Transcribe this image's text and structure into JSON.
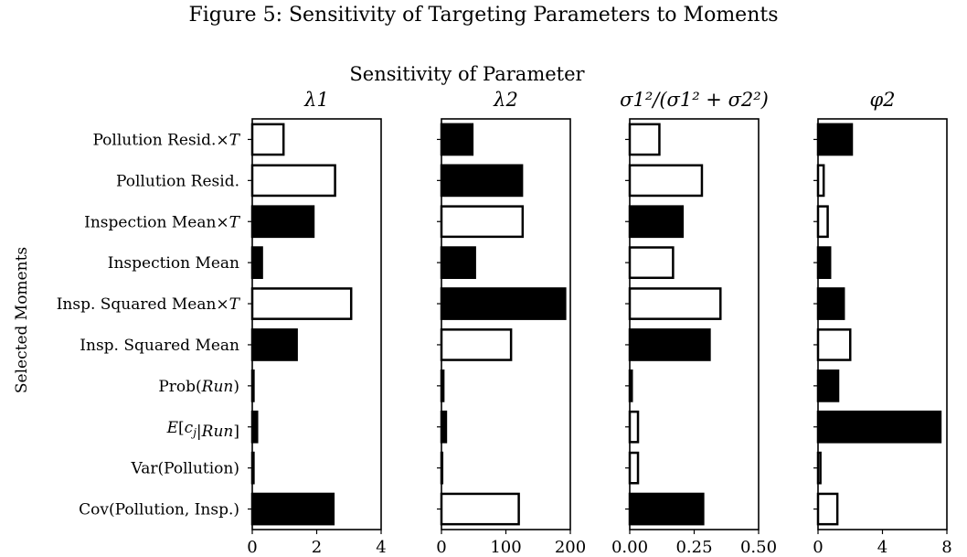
{
  "figure_title": "Figure 5: Sensitivity of Targeting Parameters to Moments",
  "chart_data": {
    "type": "bar",
    "orientation": "horizontal",
    "title": "Sensitivity of Parameter",
    "ylabel": "Selected Moments",
    "categories": [
      "Pollution Resid.×T",
      "Pollution Resid.",
      "Inspection Mean×T",
      "Inspection Mean",
      "Insp. Squared Mean×T",
      "Insp. Squared Mean",
      "Prob(Run)",
      "E[c_j|Run]",
      "Var(Pollution)",
      "Cov(Pollution, Insp.)"
    ],
    "bar_sign_legend": "filled = positive, hollow = negative (not printed)",
    "panels": [
      {
        "name": "λ1",
        "xlim": [
          0,
          4
        ],
        "xticks": [
          "0",
          "2",
          "4"
        ],
        "values": [
          0.97,
          2.57,
          1.9,
          0.3,
          3.07,
          1.38,
          0.04,
          0.15,
          0.04,
          2.52
        ],
        "filled": [
          false,
          false,
          true,
          true,
          false,
          true,
          false,
          true,
          false,
          true
        ]
      },
      {
        "name": "λ2",
        "xlim": [
          0,
          200
        ],
        "xticks": [
          "0",
          "100",
          "200"
        ],
        "values": [
          48,
          125,
          126,
          52,
          192,
          108,
          3,
          7,
          0,
          120
        ],
        "filled": [
          true,
          true,
          false,
          true,
          true,
          false,
          false,
          true,
          false,
          false
        ]
      },
      {
        "name": "σ1²/(σ1² + σ2²)",
        "xlim": [
          0,
          0.5
        ],
        "xticks": [
          "0.00",
          "0.25",
          "0.50"
        ],
        "values": [
          0.115,
          0.28,
          0.205,
          0.168,
          0.352,
          0.31,
          0.008,
          0.032,
          0.032,
          0.285
        ],
        "filled": [
          false,
          false,
          true,
          false,
          false,
          true,
          true,
          false,
          false,
          true
        ]
      },
      {
        "name": "φ2",
        "xlim": [
          0,
          8
        ],
        "xticks": [
          "0",
          "4",
          "8"
        ],
        "values": [
          2.1,
          0.35,
          0.6,
          0.75,
          1.6,
          2.0,
          1.25,
          7.6,
          0.15,
          1.2
        ],
        "filled": [
          true,
          false,
          false,
          true,
          true,
          false,
          true,
          true,
          false,
          false
        ]
      }
    ]
  },
  "colors": {
    "bar_fill": "#000000",
    "bar_hollow": "#ffffff",
    "stroke": "#000000"
  }
}
